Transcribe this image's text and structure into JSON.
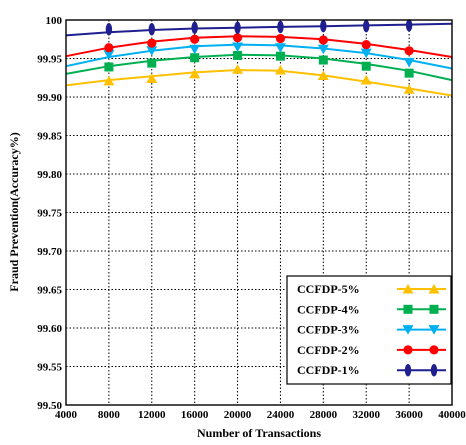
{
  "chart_data": {
    "type": "line",
    "title": "",
    "xlabel": "Number of Transactions",
    "ylabel": "Fraud Prevention(Accuracy%)",
    "xlim": [
      4000,
      40000
    ],
    "ylim": [
      99.5,
      100
    ],
    "xticks": [
      "4000",
      "8000",
      "12000",
      "16000",
      "20000",
      "24000",
      "28000",
      "32000",
      "36000",
      "40000"
    ],
    "yticks": [
      "99.50",
      "99.55",
      "99.60",
      "99.65",
      "99.70",
      "99.75",
      "99.80",
      "99.85",
      "99.90",
      "99.95",
      "100"
    ],
    "grid": "dotted",
    "legend_position": "bottom-right",
    "marker_x": [
      8000,
      12000,
      16000,
      20000,
      24000,
      28000,
      32000,
      36000
    ],
    "series": [
      {
        "name": "CCFDP-5%",
        "color": "#FFC000",
        "marker": "triangle-up",
        "curve_x": [
          4000,
          8000,
          12000,
          16000,
          20000,
          24000,
          28000,
          32000,
          36000,
          40000
        ],
        "curve_y": [
          99.915,
          99.922,
          99.927,
          99.932,
          99.935,
          99.934,
          99.928,
          99.92,
          99.911,
          99.902
        ],
        "marker_y": [
          99.921,
          99.924,
          99.93,
          99.936,
          99.935,
          99.928,
          99.922,
          99.91
        ]
      },
      {
        "name": "CCFDP-4%",
        "color": "#00B050",
        "marker": "square",
        "curve_x": [
          4000,
          8000,
          12000,
          16000,
          20000,
          24000,
          28000,
          32000,
          36000,
          40000
        ],
        "curve_y": [
          99.93,
          99.94,
          99.947,
          99.952,
          99.955,
          99.954,
          99.95,
          99.943,
          99.934,
          99.922
        ],
        "marker_y": [
          99.939,
          99.944,
          99.951,
          99.954,
          99.953,
          99.948,
          99.94,
          99.931
        ]
      },
      {
        "name": "CCFDP-3%",
        "color": "#00B0F0",
        "marker": "triangle-down",
        "curve_x": [
          4000,
          8000,
          12000,
          16000,
          20000,
          24000,
          28000,
          32000,
          36000,
          40000
        ],
        "curve_y": [
          99.94,
          99.952,
          99.96,
          99.966,
          99.968,
          99.967,
          99.963,
          99.957,
          99.948,
          99.937
        ],
        "marker_y": [
          99.955,
          99.96,
          99.962,
          99.965,
          99.964,
          99.962,
          99.957,
          99.945
        ]
      },
      {
        "name": "CCFDP-2%",
        "color": "#FF0000",
        "marker": "circle",
        "curve_x": [
          4000,
          8000,
          12000,
          16000,
          20000,
          24000,
          28000,
          32000,
          36000,
          40000
        ],
        "curve_y": [
          99.953,
          99.964,
          99.972,
          99.977,
          99.979,
          99.978,
          99.975,
          99.969,
          99.961,
          99.952
        ],
        "marker_y": [
          99.964,
          99.97,
          99.975,
          99.977,
          99.976,
          99.974,
          99.968,
          99.96
        ]
      },
      {
        "name": "CCFDP-1%",
        "color": "#1F1F8F",
        "marker": "diamond",
        "curve_x": [
          4000,
          8000,
          12000,
          16000,
          20000,
          24000,
          28000,
          32000,
          36000,
          40000
        ],
        "curve_y": [
          99.98,
          99.984,
          99.987,
          99.989,
          99.99,
          99.991,
          99.992,
          99.993,
          99.994,
          99.995
        ],
        "marker_y": [
          99.988,
          99.988,
          99.99,
          99.99,
          99.991,
          99.992,
          99.992,
          99.993
        ]
      }
    ]
  }
}
